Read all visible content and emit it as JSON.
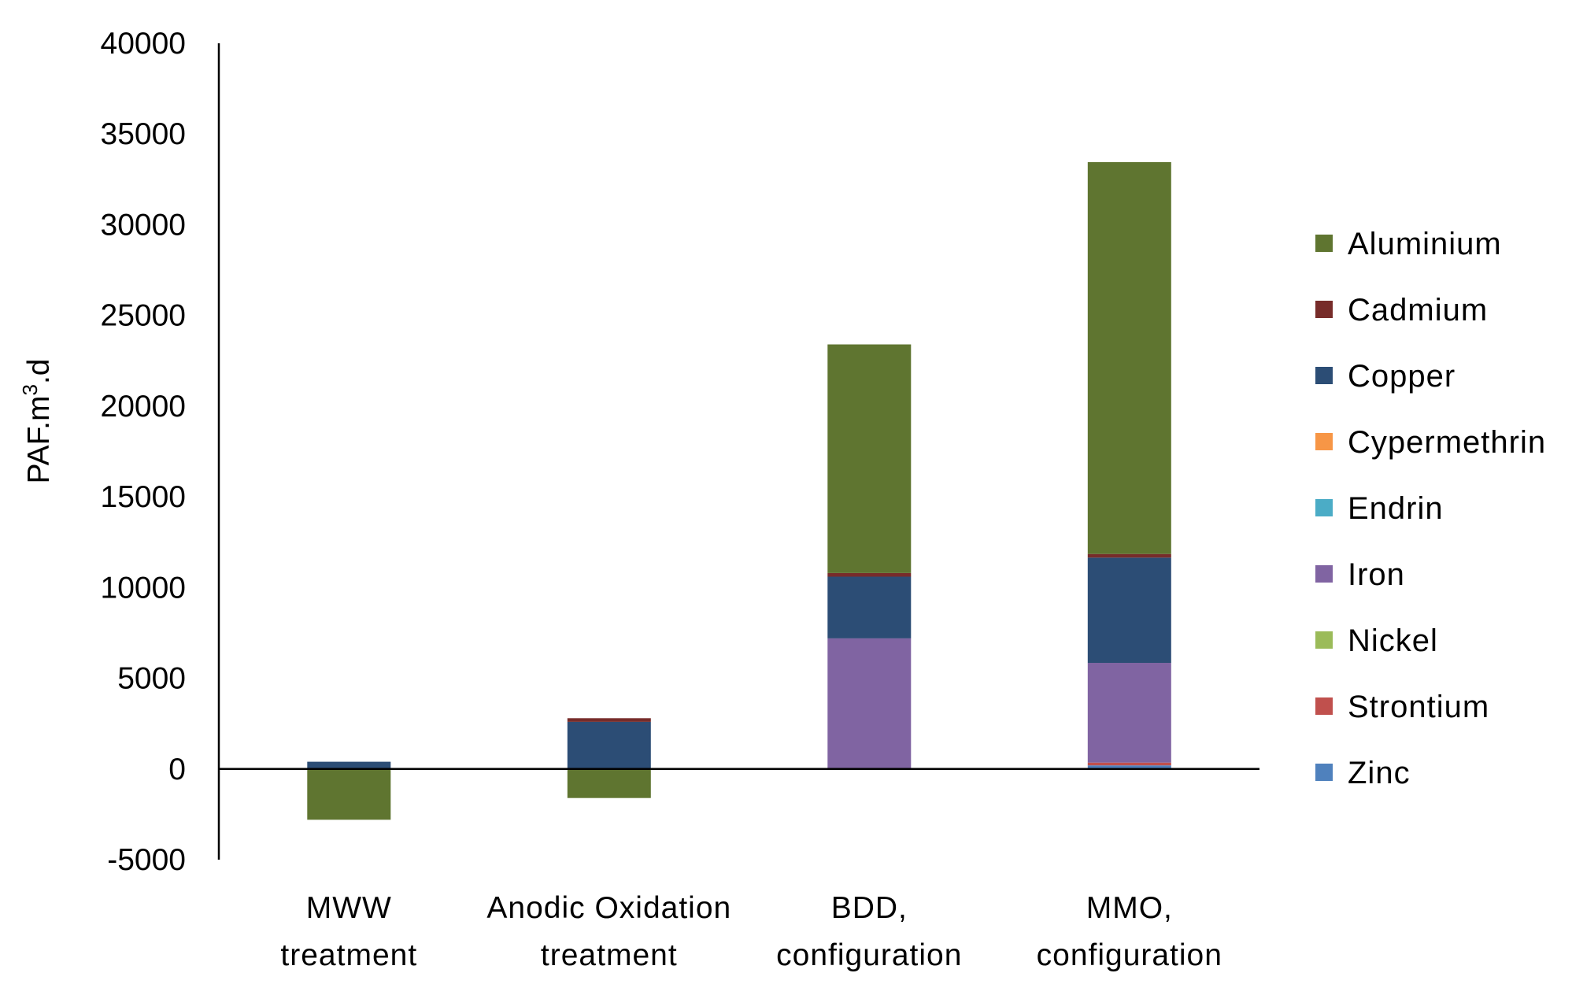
{
  "chart_data": {
    "type": "bar",
    "stacked": true,
    "title": "",
    "xlabel": "",
    "ylabel": "PAF.m",
    "ylabel_superscript": "3",
    "ylabel_suffix": ".d",
    "ylim": [
      -5000,
      40000
    ],
    "yticks": [
      -5000,
      0,
      5000,
      10000,
      15000,
      20000,
      25000,
      30000,
      35000,
      40000
    ],
    "ytick_labels": [
      "-5000",
      "0",
      "5000",
      "10000",
      "15000",
      "20000",
      "25000",
      "30000",
      "35000",
      "40000"
    ],
    "grid": false,
    "legend_position": "right",
    "categories": [
      [
        "MWW",
        "treatment"
      ],
      [
        "Anodic Oxidation",
        "treatment"
      ],
      [
        "BDD,",
        "configuration"
      ],
      [
        "MMO,",
        "configuration"
      ]
    ],
    "series": [
      {
        "name": "Zinc",
        "color": "#4F81BD",
        "values": [
          0,
          0,
          0,
          200
        ]
      },
      {
        "name": "Strontium",
        "color": "#C0504D",
        "values": [
          0,
          0,
          0,
          150
        ]
      },
      {
        "name": "Nickel",
        "color": "#9BBB59",
        "values": [
          0,
          0,
          0,
          0
        ]
      },
      {
        "name": "Iron",
        "color": "#8064A2",
        "values": [
          0,
          0,
          7200,
          5500
        ]
      },
      {
        "name": "Endrin",
        "color": "#4BACC6",
        "values": [
          0,
          0,
          0,
          0
        ]
      },
      {
        "name": "Cypermethrin",
        "color": "#F79646",
        "values": [
          0,
          0,
          0,
          0
        ]
      },
      {
        "name": "Copper",
        "color": "#2C4D75",
        "values": [
          400,
          2600,
          3400,
          5800
        ]
      },
      {
        "name": "Cadmium",
        "color": "#772C2A",
        "values": [
          0,
          200,
          200,
          200
        ]
      },
      {
        "name": "Aluminium",
        "color": "#5F7530",
        "values": [
          -2800,
          -1600,
          12600,
          21600
        ]
      }
    ],
    "legend_order": [
      "Aluminium",
      "Cadmium",
      "Copper",
      "Cypermethrin",
      "Endrin",
      "Iron",
      "Nickel",
      "Strontium",
      "Zinc"
    ]
  }
}
